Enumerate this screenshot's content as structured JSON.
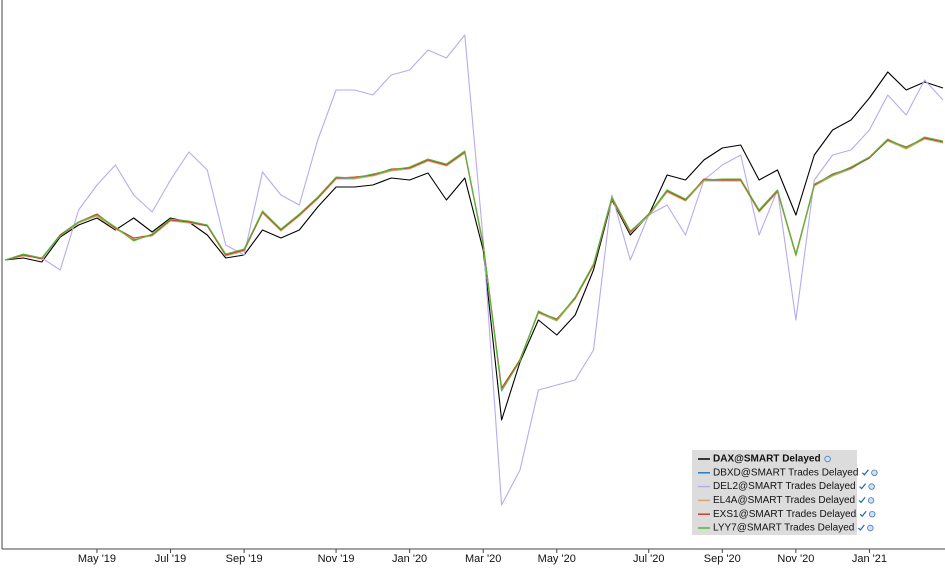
{
  "chart_data": {
    "type": "line",
    "categories": [
      null,
      null,
      null,
      null,
      null,
      "May '19",
      null,
      null,
      null,
      "Jul '19",
      null,
      null,
      null,
      "Sep '19",
      null,
      null,
      null,
      null,
      "Nov '19",
      null,
      null,
      null,
      "Jan '20",
      null,
      null,
      null,
      "Mar '20",
      null,
      null,
      null,
      "May '20",
      null,
      null,
      null,
      null,
      "Jul '20",
      null,
      null,
      null,
      "Sep '20",
      null,
      null,
      null,
      "Nov '20",
      null,
      null,
      null,
      "Jan '21",
      null,
      null,
      null,
      null
    ],
    "ylim": [
      0,
      550
    ],
    "legend": "lower right",
    "series": [
      {
        "name": "DAX@SMART Delayed",
        "color": "#000000",
        "values": [
          290,
          292,
          288,
          313,
          325,
          332,
          320,
          332,
          318,
          332,
          328,
          315,
          292,
          295,
          320,
          312,
          320,
          343,
          363,
          363,
          365,
          372,
          370,
          377,
          350,
          372,
          300,
          130,
          188,
          230,
          215,
          235,
          280,
          350,
          315,
          335,
          375,
          370,
          390,
          402,
          405,
          370,
          380,
          335,
          395,
          420,
          430,
          452,
          478,
          460,
          468,
          462
        ]
      },
      {
        "name": "DBXD@SMART Trades Delayed",
        "color": "#2b7bb9",
        "values": [
          290,
          295,
          292,
          315,
          328,
          335,
          322,
          310,
          315,
          330,
          328,
          325,
          295,
          300,
          338,
          320,
          335,
          352,
          372,
          372,
          375,
          380,
          382,
          390,
          385,
          398,
          305,
          160,
          190,
          238,
          230,
          252,
          285,
          352,
          318,
          335,
          360,
          350,
          370,
          370,
          370,
          340,
          360,
          295,
          365,
          375,
          382,
          392,
          410,
          402,
          412,
          408
        ]
      },
      {
        "name": "DEL2@SMART Trades Delayed",
        "color": "#b9aaf0",
        "values": [
          290,
          295,
          292,
          280,
          340,
          365,
          385,
          355,
          338,
          370,
          398,
          380,
          305,
          295,
          378,
          355,
          345,
          410,
          460,
          460,
          455,
          475,
          480,
          500,
          492,
          515,
          310,
          45,
          80,
          160,
          165,
          170,
          200,
          355,
          290,
          335,
          345,
          315,
          370,
          385,
          395,
          315,
          360,
          230,
          370,
          395,
          400,
          420,
          455,
          435,
          470,
          450
        ]
      },
      {
        "name": "EL4A@SMART Trades Delayed",
        "color": "#d9a66a",
        "values": [
          290,
          294,
          292,
          314,
          327,
          334,
          321,
          311,
          314,
          329,
          327,
          324,
          294,
          299,
          337,
          319,
          334,
          351,
          371,
          371,
          374,
          379,
          381,
          389,
          384,
          397,
          304,
          161,
          191,
          237,
          229,
          251,
          284,
          351,
          317,
          334,
          358,
          349,
          369,
          369,
          369,
          338,
          358,
          294,
          364,
          374,
          381,
          393,
          409,
          401,
          411,
          407
        ]
      },
      {
        "name": "EXS1@SMART Trades Delayed",
        "color": "#d03a2e",
        "values": [
          290,
          295,
          291,
          315,
          328,
          336,
          322,
          312,
          315,
          330,
          328,
          324,
          295,
          300,
          338,
          320,
          335,
          352,
          372,
          373,
          375,
          381,
          382,
          390,
          385,
          398,
          306,
          162,
          190,
          238,
          231,
          252,
          285,
          352,
          318,
          336,
          359,
          350,
          371,
          370,
          370,
          339,
          359,
          296,
          365,
          376,
          382,
          392,
          410,
          403,
          412,
          408
        ]
      },
      {
        "name": "LYY7@SMART Trades Delayed",
        "color": "#4cbf34",
        "values": [
          290,
          296,
          292,
          314,
          328,
          335,
          323,
          309,
          316,
          331,
          329,
          325,
          296,
          301,
          339,
          321,
          336,
          353,
          373,
          372,
          376,
          380,
          383,
          391,
          386,
          399,
          305,
          159,
          189,
          239,
          230,
          253,
          286,
          353,
          319,
          335,
          360,
          351,
          370,
          371,
          371,
          340,
          360,
          295,
          366,
          375,
          383,
          393,
          411,
          402,
          413,
          409
        ]
      }
    ]
  }
}
